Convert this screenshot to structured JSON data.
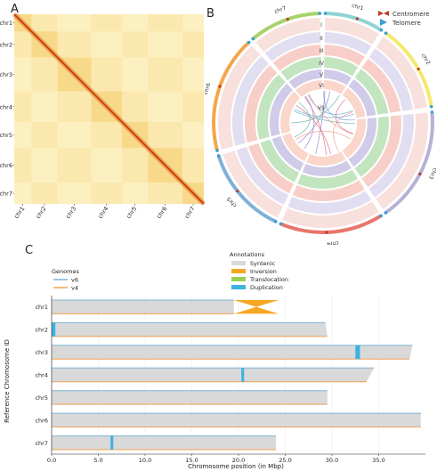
{
  "panels": {
    "a": {
      "letter": "A"
    },
    "b": {
      "letter": "B"
    },
    "c": {
      "letter": "C"
    }
  },
  "chart_data": [
    {
      "type": "heatmap",
      "title": "",
      "row_labels": [
        "chr1",
        "chr2",
        "chr3",
        "chr4",
        "chr5",
        "chr6",
        "chr7"
      ],
      "col_labels": [
        "chr1",
        "chr2",
        "chr3",
        "chr4",
        "chr5",
        "chr6",
        "chr7"
      ],
      "relative_sizes": [
        19.5,
        29.3,
        38.3,
        34.5,
        29.5,
        39.0,
        24.0
      ],
      "color_low": "#fdf3c8",
      "color_high": "#d9480f"
    },
    {
      "type": "circos",
      "chromosomes": [
        "chr1",
        "chr2",
        "chr3",
        "chr4",
        "chr5",
        "chr6",
        "chr7"
      ],
      "chromosome_colors": [
        "#8fd3d0",
        "#f4e96c",
        "#b7b1d6",
        "#e9756a",
        "#7fb1d8",
        "#f4a64c",
        "#a9d26a"
      ],
      "track_labels": [
        "I",
        "II",
        "III",
        "IV",
        "V",
        "VI",
        "VII"
      ],
      "legend": [
        {
          "label": "Centromere",
          "color": "#c0392b"
        },
        {
          "label": "Telomere",
          "color": "#3aa0d8"
        }
      ]
    },
    {
      "type": "bar",
      "title": "",
      "legend_genomes_title": "Genomes",
      "genomes": [
        {
          "name": "v6",
          "color": "#7fb3d5"
        },
        {
          "name": "v4",
          "color": "#f0a050"
        }
      ],
      "legend_annotations_title": "Annotations",
      "annotations": [
        {
          "name": "Syntenic",
          "color": "#d9d9d9"
        },
        {
          "name": "Inversion",
          "color": "#f5a623"
        },
        {
          "name": "Translocation",
          "color": "#9bcf53"
        },
        {
          "name": "Duplication",
          "color": "#3db3e0"
        }
      ],
      "xlabel": "Chromosome position (in Mbp)",
      "ylabel": "Reference Chromosome ID",
      "xlim": [
        0,
        40
      ],
      "x_ticks": [
        0,
        5,
        10,
        15,
        20,
        25,
        30,
        35
      ],
      "x_tick_labels": [
        "0.0",
        "5.0",
        "10.0",
        "15.0",
        "20.0",
        "25.0",
        "30.0",
        "35.0"
      ],
      "categories": [
        "chr1",
        "chr2",
        "chr3",
        "chr4",
        "chr5",
        "chr6",
        "chr7"
      ],
      "series": [
        {
          "name": "v6",
          "values": [
            19.5,
            29.3,
            38.6,
            34.5,
            29.5,
            39.5,
            24.0
          ]
        },
        {
          "name": "v4",
          "values": [
            19.5,
            29.5,
            38.3,
            33.7,
            29.5,
            39.5,
            24.0
          ]
        }
      ],
      "inversions": [
        {
          "chr": "chr1",
          "start": 19.5,
          "end": 24.3
        }
      ],
      "duplications": [
        {
          "chr": "chr2",
          "start": 0.0,
          "end": 0.4
        },
        {
          "chr": "chr3",
          "start": 32.5,
          "end": 33.0
        },
        {
          "chr": "chr4",
          "start": 20.3,
          "end": 20.6
        },
        {
          "chr": "chr7",
          "start": 6.3,
          "end": 6.6
        }
      ]
    }
  ]
}
